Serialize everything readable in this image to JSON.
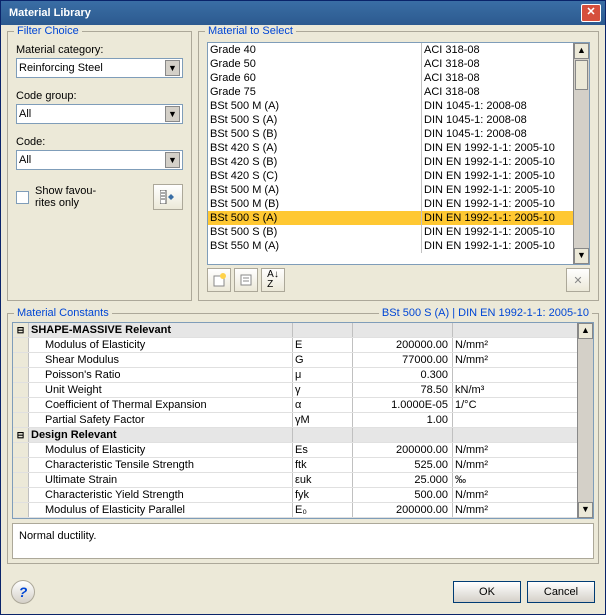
{
  "window": {
    "title": "Material Library"
  },
  "filter": {
    "group_label": "Filter Choice",
    "category_label": "Material category:",
    "category_value": "Reinforcing Steel",
    "codegroup_label": "Code group:",
    "codegroup_value": "All",
    "code_label": "Code:",
    "code_value": "All",
    "fav_label": "Show favou-\nrites only",
    "fav_checked": false
  },
  "select": {
    "group_label": "Material to Select",
    "rows": [
      {
        "name": "Grade 40",
        "code": "ACI 318-08",
        "sel": false
      },
      {
        "name": "Grade 50",
        "code": "ACI 318-08",
        "sel": false
      },
      {
        "name": "Grade 60",
        "code": "ACI 318-08",
        "sel": false
      },
      {
        "name": "Grade 75",
        "code": "ACI 318-08",
        "sel": false
      },
      {
        "name": "BSt 500 M (A)",
        "code": "DIN 1045-1: 2008-08",
        "sel": false
      },
      {
        "name": "BSt 500 S (A)",
        "code": "DIN 1045-1: 2008-08",
        "sel": false
      },
      {
        "name": "BSt 500 S (B)",
        "code": "DIN 1045-1: 2008-08",
        "sel": false
      },
      {
        "name": "BSt 420 S (A)",
        "code": "DIN EN 1992-1-1: 2005-10",
        "sel": false
      },
      {
        "name": "BSt 420 S (B)",
        "code": "DIN EN 1992-1-1: 2005-10",
        "sel": false
      },
      {
        "name": "BSt 420 S (C)",
        "code": "DIN EN 1992-1-1: 2005-10",
        "sel": false
      },
      {
        "name": "BSt 500 M (A)",
        "code": "DIN EN 1992-1-1: 2005-10",
        "sel": false
      },
      {
        "name": "BSt 500 M (B)",
        "code": "DIN EN 1992-1-1: 2005-10",
        "sel": false
      },
      {
        "name": "BSt 500 S (A)",
        "code": "DIN EN 1992-1-1: 2005-10",
        "sel": true
      },
      {
        "name": "BSt 500 S (B)",
        "code": "DIN EN 1992-1-1: 2005-10",
        "sel": false
      },
      {
        "name": "BSt 550 M (A)",
        "code": "DIN EN 1992-1-1: 2005-10",
        "sel": false
      }
    ]
  },
  "constants": {
    "group_label": "Material Constants",
    "selected_label": "BSt 500 S (A)  |  DIN EN 1992-1-1: 2005-10",
    "rows": [
      {
        "h": true,
        "name": "SHAPE-MASSIVE Relevant",
        "sym": "",
        "val": "",
        "unit": "",
        "exp": "⊟"
      },
      {
        "h": false,
        "name": "Modulus of Elasticity",
        "sym": "E",
        "val": "200000.00",
        "unit": "N/mm²"
      },
      {
        "h": false,
        "name": "Shear Modulus",
        "sym": "G",
        "val": "77000.00",
        "unit": "N/mm²"
      },
      {
        "h": false,
        "name": "Poisson's Ratio",
        "sym": "μ",
        "val": "0.300",
        "unit": ""
      },
      {
        "h": false,
        "name": "Unit Weight",
        "sym": "γ",
        "val": "78.50",
        "unit": "kN/m³"
      },
      {
        "h": false,
        "name": "Coefficient of Thermal Expansion",
        "sym": "α",
        "val": "1.0000E-05",
        "unit": "1/°C"
      },
      {
        "h": false,
        "name": "Partial Safety Factor",
        "sym": "γM",
        "val": "1.00",
        "unit": ""
      },
      {
        "h": true,
        "name": "Design Relevant",
        "sym": "",
        "val": "",
        "unit": "",
        "exp": "⊟"
      },
      {
        "h": false,
        "name": "Modulus of Elasticity",
        "sym": "Es",
        "val": "200000.00",
        "unit": "N/mm²"
      },
      {
        "h": false,
        "name": "Characteristic Tensile Strength",
        "sym": "ftk",
        "val": "525.00",
        "unit": "N/mm²"
      },
      {
        "h": false,
        "name": "Ultimate Strain",
        "sym": "εuk",
        "val": "25.000",
        "unit": "‰"
      },
      {
        "h": false,
        "name": "Characteristic Yield Strength",
        "sym": "fyk",
        "val": "500.00",
        "unit": "N/mm²"
      },
      {
        "h": false,
        "name": "Modulus of Elasticity Parallel",
        "sym": "E₀",
        "val": "200000.00",
        "unit": "N/mm²"
      }
    ],
    "note": "Normal ductility."
  },
  "buttons": {
    "ok": "OK",
    "cancel": "Cancel"
  }
}
